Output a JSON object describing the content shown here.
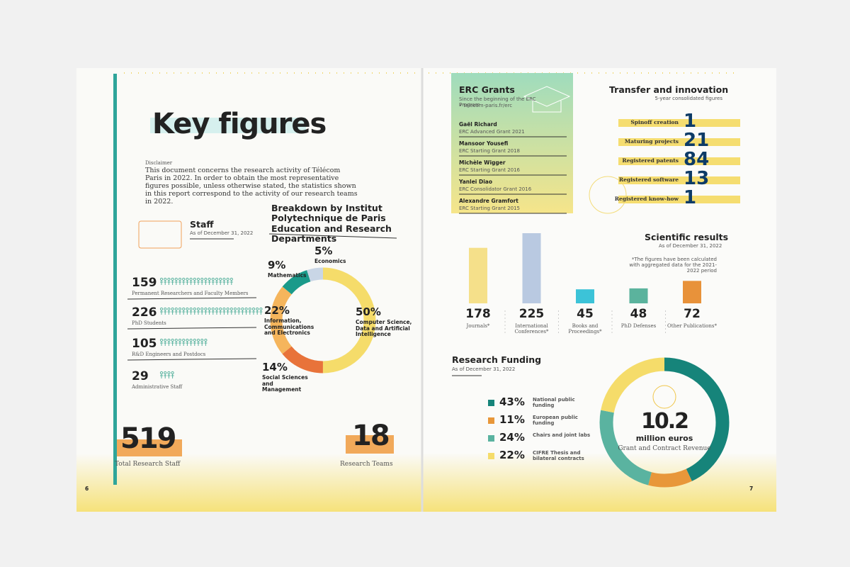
{
  "left_page": {
    "title": "Key figures",
    "disclaimer": {
      "label": "Disclaimer",
      "text": "This document concerns the research activity of Télécom Paris in 2022. In order to obtain the most representative figures possible, unless otherwise stated, the statistics shown in this report correspond to the activity of our research teams in 2022."
    },
    "staff": {
      "title": "Staff",
      "date": "As of December 31, 2022",
      "rows": [
        {
          "value": 159,
          "label": "Permanent Researchers and Faculty Members"
        },
        {
          "value": 226,
          "label": "PhD Students"
        },
        {
          "value": 105,
          "label": "R&D Engineers and Postdocs"
        },
        {
          "value": 29,
          "label": "Administrative Staff"
        }
      ]
    },
    "departments": {
      "type": "pie",
      "title": "Breakdown by Institut Polytechnique de Paris Education and Research Departments",
      "segments": [
        {
          "name": "Computer Science, Data and Artificial Intelligence",
          "value": 50,
          "value_label": "50%",
          "color": "#f5dc6a"
        },
        {
          "name": "Social Sciences and Management",
          "value": 14,
          "value_label": "14%",
          "color": "#e8733a"
        },
        {
          "name": "Information, Communications and Electronics",
          "value": 22,
          "value_label": "22%",
          "color": "#f5b55c"
        },
        {
          "name": "Mathematics",
          "value": 9,
          "value_label": "9%",
          "color": "#1a9a8a"
        },
        {
          "name": "Economics",
          "value": 5,
          "value_label": "5%",
          "color": "#c9d6e6"
        }
      ]
    },
    "totals": [
      {
        "value": 519,
        "label": "Total Research Staff"
      },
      {
        "value": 18,
        "label": "Research Teams"
      }
    ],
    "page_number": 6
  },
  "right_page": {
    "erc": {
      "title": "ERC Grants",
      "subtitle": "Since the beginning of the ERC Program",
      "link": "• telecom-paris.fr/erc",
      "grants": [
        {
          "name": "Gaël Richard",
          "grant": "ERC Advanced Grant 2021"
        },
        {
          "name": "Mansoor Yousefi",
          "grant": "ERC Starting Grant 2018"
        },
        {
          "name": "Michèle Wigger",
          "grant": "ERC Starting Grant 2016"
        },
        {
          "name": "Yanlei Diao",
          "grant": "ERC Consolidator Grant 2016"
        },
        {
          "name": "Alexandre Gramfort",
          "grant": "ERC Starting Grant 2015"
        }
      ]
    },
    "transfer": {
      "title": "Transfer and innovation",
      "subtitle": "5-year consolidated figures",
      "items": [
        {
          "label": "Spinoff creation",
          "value": 1
        },
        {
          "label": "Maturing projects",
          "value": 21
        },
        {
          "label": "Registered patents",
          "value": 84
        },
        {
          "label": "Registered software",
          "value": 13
        },
        {
          "label": "Registered know-how",
          "value": 1
        }
      ]
    },
    "scientific": {
      "type": "bar",
      "title": "Scientific results",
      "date": "As of December 31, 2022",
      "note": "*The figures have been calculated with aggregated data for the 2021-2022 period",
      "categories": [
        "Journals*",
        "International Conferences*",
        "Books and Proceedings*",
        "PhD Defenses",
        "Other Publications*"
      ],
      "values": [
        178,
        225,
        45,
        48,
        72
      ],
      "colors": [
        "#f5e08a",
        "#b9c9e1",
        "#3cc3d8",
        "#5bb39d",
        "#e8923a"
      ]
    },
    "funding": {
      "type": "pie",
      "title": "Research Funding",
      "date": "As of December 31, 2022",
      "segments": [
        {
          "name": "National public funding",
          "value": 43,
          "value_label": "43%",
          "color": "#16847a"
        },
        {
          "name": "European public funding",
          "value": 11,
          "value_label": "11%",
          "color": "#e8973a"
        },
        {
          "name": "Chairs and joint labs",
          "value": 24,
          "value_label": "24%",
          "color": "#5ab3a0"
        },
        {
          "name": "CIFRE Thesis and bilateral contracts",
          "value": 22,
          "value_label": "22%",
          "color": "#f5dc6a"
        }
      ],
      "total": "10.2",
      "unit": "million euros",
      "caption": "Grant and Contract Revenue"
    },
    "page_number": 7
  }
}
